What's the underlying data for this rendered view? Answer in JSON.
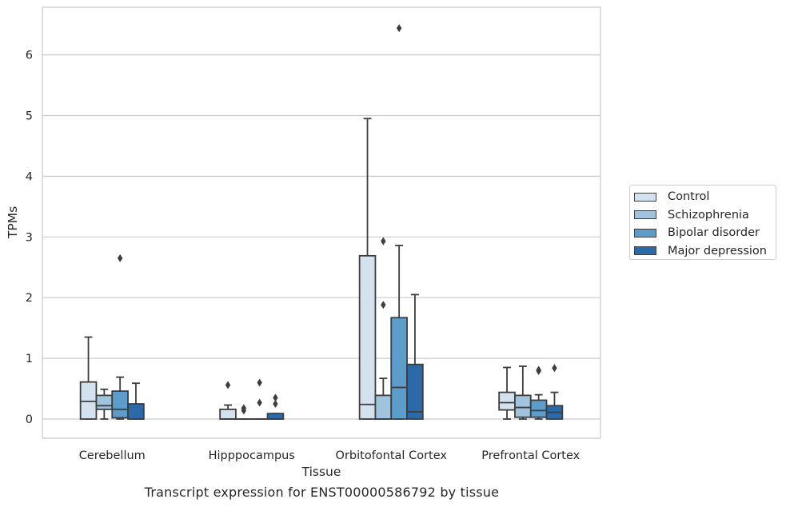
{
  "chart_data": {
    "type": "box",
    "title": "",
    "caption": "Transcript expression for ENST00000586792 by tissue",
    "xlabel": "Tissue",
    "ylabel": "TPMs",
    "ylim": [
      -0.3,
      6.75
    ],
    "yticks": [
      0,
      1,
      2,
      3,
      4,
      5,
      6
    ],
    "grid": "horizontal",
    "legend_position": "right",
    "categories": [
      "Cerebellum",
      "Hipppocampus",
      "Orbitofontal Cortex",
      "Prefrontal Cortex"
    ],
    "series": [
      {
        "name": "Control",
        "color": "#d4e1ef",
        "boxes": [
          {
            "whislo": 0,
            "q1": 0,
            "med": 0.29,
            "q3": 0.61,
            "whishi": 1.35,
            "fliers": []
          },
          {
            "whislo": 0,
            "q1": 0,
            "med": 0,
            "q3": 0.16,
            "whishi": 0.23,
            "fliers": [
              0.56
            ]
          },
          {
            "whislo": 0,
            "q1": 0,
            "med": 0.24,
            "q3": 2.69,
            "whishi": 4.95,
            "fliers": []
          },
          {
            "whislo": 0,
            "q1": 0.15,
            "med": 0.27,
            "q3": 0.44,
            "whishi": 0.85,
            "fliers": []
          }
        ]
      },
      {
        "name": "Schizophrenia",
        "color": "#a0c4de",
        "boxes": [
          {
            "whislo": 0,
            "q1": 0.16,
            "med": 0.22,
            "q3": 0.39,
            "whishi": 0.49,
            "fliers": []
          },
          {
            "whislo": 0,
            "q1": 0,
            "med": 0,
            "q3": 0,
            "whishi": 0,
            "fliers": [
              0.14,
              0.18
            ]
          },
          {
            "whislo": 0,
            "q1": 0,
            "med": 0,
            "q3": 0.39,
            "whishi": 0.67,
            "fliers": [
              1.88,
              2.93
            ]
          },
          {
            "whislo": 0,
            "q1": 0.03,
            "med": 0.19,
            "q3": 0.39,
            "whishi": 0.87,
            "fliers": []
          }
        ]
      },
      {
        "name": "Bipolar disorder",
        "color": "#5d9dcb",
        "boxes": [
          {
            "whislo": 0,
            "q1": 0.02,
            "med": 0.16,
            "q3": 0.46,
            "whishi": 0.69,
            "fliers": [
              2.65
            ]
          },
          {
            "whislo": 0,
            "q1": 0,
            "med": 0,
            "q3": 0,
            "whishi": 0,
            "fliers": [
              0.27,
              0.6
            ]
          },
          {
            "whislo": 0,
            "q1": 0,
            "med": 0.52,
            "q3": 1.67,
            "whishi": 2.86,
            "fliers": [
              6.44
            ]
          },
          {
            "whislo": 0,
            "q1": 0.03,
            "med": 0.14,
            "q3": 0.31,
            "whishi": 0.4,
            "fliers": [
              0.79,
              0.81
            ]
          }
        ]
      },
      {
        "name": "Major depression",
        "color": "#2c69a8",
        "boxes": [
          {
            "whislo": 0,
            "q1": 0,
            "med": 0,
            "q3": 0.25,
            "whishi": 0.59,
            "fliers": []
          },
          {
            "whislo": 0,
            "q1": 0,
            "med": 0,
            "q3": 0.09,
            "whishi": 0.09,
            "fliers": [
              0.25,
              0.35
            ]
          },
          {
            "whislo": 0,
            "q1": 0,
            "med": 0.12,
            "q3": 0.9,
            "whishi": 2.05,
            "fliers": []
          },
          {
            "whislo": 0,
            "q1": 0,
            "med": 0.11,
            "q3": 0.22,
            "whishi": 0.44,
            "fliers": [
              0.84
            ]
          }
        ]
      }
    ]
  }
}
